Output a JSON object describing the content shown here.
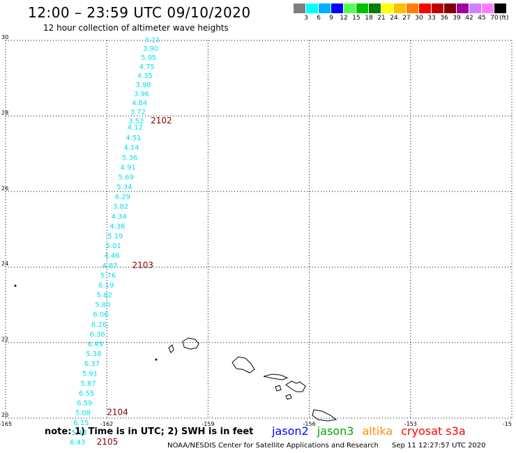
{
  "header": {
    "title": "12:00 – 23:59 UTC 09/10/2020",
    "subtitle": "12 hour collection of altimeter wave heights"
  },
  "legend": {
    "colors": [
      "#7f7f7f",
      "#00ffff",
      "#00b0ff",
      "#0000ff",
      "#50ff50",
      "#00c000",
      "#008000",
      "#ffff00",
      "#ffc000",
      "#ff8000",
      "#ff0000",
      "#c00000",
      "#800000",
      "#a000a0",
      "#d080ff",
      "#ff80ff",
      "#000000"
    ],
    "labels": [
      "3",
      "6",
      "9",
      "12",
      "15",
      "18",
      "21",
      "24",
      "27",
      "30",
      "33",
      "36",
      "39",
      "42",
      "45",
      "70"
    ],
    "unit": "(ft)"
  },
  "axes": {
    "lat_labels": [
      "30",
      "28",
      "26",
      "24",
      "22",
      "20"
    ],
    "lon_labels": [
      "-165",
      "-162",
      "-159",
      "-156",
      "-153",
      "-15"
    ]
  },
  "chart_data": {
    "type": "scatter",
    "map_extent": {
      "lon": [
        -165,
        -150
      ],
      "lat": [
        20,
        30
      ]
    },
    "swh_color": "#00e0f0",
    "time_label_color": "#800000",
    "swh_points": [
      {
        "lon": -160.65,
        "lat": 29.95,
        "swh": "3.21"
      },
      {
        "lon": -160.7,
        "lat": 29.72,
        "swh": "3.90"
      },
      {
        "lon": -160.76,
        "lat": 29.48,
        "swh": "5.95"
      },
      {
        "lon": -160.81,
        "lat": 29.24,
        "swh": "4.75"
      },
      {
        "lon": -160.87,
        "lat": 29.0,
        "swh": "4.35"
      },
      {
        "lon": -160.92,
        "lat": 28.76,
        "swh": "3.98"
      },
      {
        "lon": -160.97,
        "lat": 28.52,
        "swh": "3.96"
      },
      {
        "lon": -161.03,
        "lat": 28.28,
        "swh": "4.84"
      },
      {
        "lon": -161.08,
        "lat": 28.04,
        "swh": "3.72"
      },
      {
        "lon": -161.13,
        "lat": 27.8,
        "swh": "3.52"
      },
      {
        "lon": -161.16,
        "lat": 27.64,
        "swh": "4.12"
      },
      {
        "lon": -161.21,
        "lat": 27.36,
        "swh": "4.51"
      },
      {
        "lon": -161.27,
        "lat": 27.1,
        "swh": "4.14"
      },
      {
        "lon": -161.32,
        "lat": 26.84,
        "swh": "5.36"
      },
      {
        "lon": -161.37,
        "lat": 26.58,
        "swh": "4.91"
      },
      {
        "lon": -161.43,
        "lat": 26.32,
        "swh": "5.69"
      },
      {
        "lon": -161.48,
        "lat": 26.06,
        "swh": "5.34"
      },
      {
        "lon": -161.53,
        "lat": 25.8,
        "swh": "6.29"
      },
      {
        "lon": -161.59,
        "lat": 25.54,
        "swh": "3.82"
      },
      {
        "lon": -161.64,
        "lat": 25.28,
        "swh": "4.34"
      },
      {
        "lon": -161.69,
        "lat": 25.02,
        "swh": "4.36"
      },
      {
        "lon": -161.75,
        "lat": 24.76,
        "swh": "5.19"
      },
      {
        "lon": -161.8,
        "lat": 24.5,
        "swh": "5.01"
      },
      {
        "lon": -161.85,
        "lat": 24.24,
        "swh": "4.46"
      },
      {
        "lon": -161.91,
        "lat": 23.98,
        "swh": "4.87"
      },
      {
        "lon": -161.96,
        "lat": 23.72,
        "swh": "5.76"
      },
      {
        "lon": -162.02,
        "lat": 23.46,
        "swh": "6.19"
      },
      {
        "lon": -162.07,
        "lat": 23.2,
        "swh": "5.82"
      },
      {
        "lon": -162.12,
        "lat": 22.94,
        "swh": "5.80"
      },
      {
        "lon": -162.18,
        "lat": 22.68,
        "swh": "6.06"
      },
      {
        "lon": -162.23,
        "lat": 22.42,
        "swh": "6.26"
      },
      {
        "lon": -162.28,
        "lat": 22.16,
        "swh": "6.36"
      },
      {
        "lon": -162.34,
        "lat": 21.9,
        "swh": "6.49"
      },
      {
        "lon": -162.39,
        "lat": 21.64,
        "swh": "5.38"
      },
      {
        "lon": -162.44,
        "lat": 21.38,
        "swh": "6.37"
      },
      {
        "lon": -162.5,
        "lat": 21.12,
        "swh": "5.91"
      },
      {
        "lon": -162.55,
        "lat": 20.86,
        "swh": "5.87"
      },
      {
        "lon": -162.6,
        "lat": 20.6,
        "swh": "6.55"
      },
      {
        "lon": -162.66,
        "lat": 20.34,
        "swh": "6.59"
      },
      {
        "lon": -162.71,
        "lat": 20.08,
        "swh": "5.08"
      },
      {
        "lon": -162.76,
        "lat": 19.82,
        "swh": "6.15"
      },
      {
        "lon": -162.82,
        "lat": 19.56,
        "swh": "5.48"
      },
      {
        "lon": -162.87,
        "lat": 19.3,
        "swh": "6.43"
      }
    ],
    "time_labels": [
      {
        "lon": -160.7,
        "lat": 27.8,
        "text": "2102"
      },
      {
        "lon": -161.25,
        "lat": 23.98,
        "text": "2103"
      },
      {
        "lon": -162.0,
        "lat": 20.08,
        "text": "2104"
      },
      {
        "lon": -162.3,
        "lat": 19.3,
        "text": "2105"
      }
    ]
  },
  "footer": {
    "note": "note: 1) Time is in UTC; 2) SWH is in feet",
    "satellites": [
      {
        "name": "jason2",
        "color": "#0000ff"
      },
      {
        "name": "jason3",
        "color": "#00a000"
      },
      {
        "name": "altika",
        "color": "#ff9000"
      },
      {
        "name": "cryosat s3a",
        "color": "#ff0000"
      }
    ],
    "credit": "NOAA/NESDIS Center for Satellite Applications and Research",
    "timestamp": "Sep 11 12:27:57 UTC 2020"
  }
}
